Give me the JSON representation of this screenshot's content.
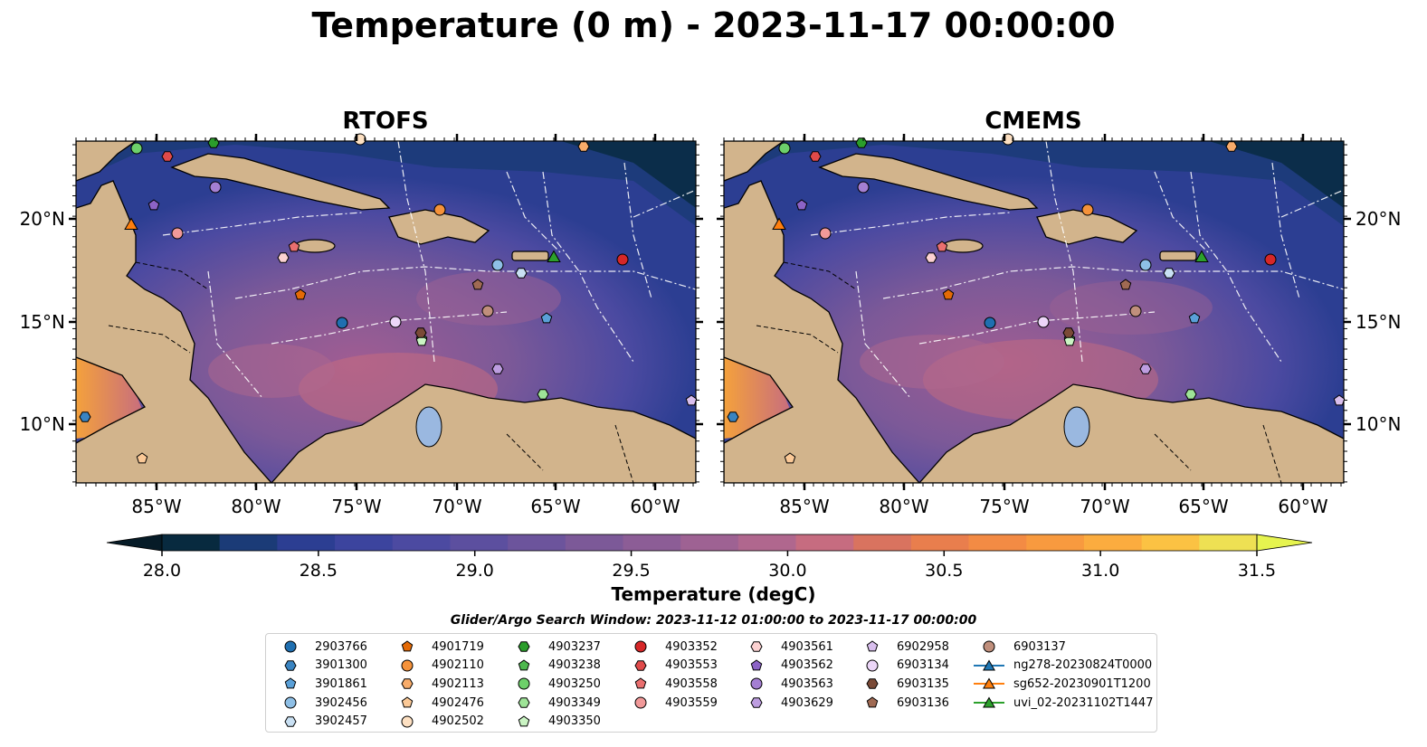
{
  "title": "Temperature (0 m) - 2023-11-17 00:00:00",
  "maps": [
    {
      "title": "RTOFS"
    },
    {
      "title": "CMEMS"
    }
  ],
  "lat_labels": [
    "20°N",
    "15°N",
    "10°N"
  ],
  "lon_labels": [
    "85°W",
    "80°W",
    "75°W",
    "70°W",
    "65°W",
    "60°W"
  ],
  "colorbar": {
    "label": "Temperature (degC)",
    "ticks": [
      "28.0",
      "28.5",
      "29.0",
      "29.5",
      "30.0",
      "30.5",
      "31.0",
      "31.5"
    ],
    "min": 28.0,
    "max": 31.5,
    "colors": [
      "#082a3f",
      "#1b3b77",
      "#2c3e92",
      "#3c449e",
      "#4c4aa1",
      "#5c4f9f",
      "#6c549c",
      "#7c5998",
      "#8c5d96",
      "#9e6293",
      "#b0678e",
      "#c66c80",
      "#d9735f",
      "#e97e4d",
      "#f38b44",
      "#f89a3f",
      "#fbac3f",
      "#fbc243",
      "#eee053"
    ],
    "extend_low_color": "#061b27",
    "extend_high_color": "#e6f44f"
  },
  "search_window": "Glider/Argo Search Window: 2023-11-12 01:00:00 to 2023-11-17 00:00:00",
  "legend": {
    "columns": [
      [
        {
          "label": "2903766",
          "marker": "circle",
          "color": "#1f6fb0"
        },
        {
          "label": "3901300",
          "marker": "hexagon",
          "color": "#3a84c1"
        },
        {
          "label": "3901861",
          "marker": "pentagon",
          "color": "#5aa0d8"
        },
        {
          "label": "3902456",
          "marker": "circle",
          "color": "#8ebfe6"
        },
        {
          "label": "3902457",
          "marker": "hexagon",
          "color": "#c9e0f3"
        }
      ],
      [
        {
          "label": "4901719",
          "marker": "pentagon",
          "color": "#e46a06"
        },
        {
          "label": "4902110",
          "marker": "circle",
          "color": "#f5923a"
        },
        {
          "label": "4902113",
          "marker": "hexagon",
          "color": "#f8ac6a"
        },
        {
          "label": "4902476",
          "marker": "pentagon",
          "color": "#fbc997"
        },
        {
          "label": "4902502",
          "marker": "circle",
          "color": "#fde0c2"
        }
      ],
      [
        {
          "label": "4903237",
          "marker": "hexagon",
          "color": "#2b9d2b"
        },
        {
          "label": "4903238",
          "marker": "pentagon",
          "color": "#4eb84e"
        },
        {
          "label": "4903250",
          "marker": "circle",
          "color": "#6dd06a"
        },
        {
          "label": "4903349",
          "marker": "hexagon",
          "color": "#9ee497"
        },
        {
          "label": "4903350",
          "marker": "pentagon",
          "color": "#caf4c3"
        }
      ],
      [
        {
          "label": "4903352",
          "marker": "circle",
          "color": "#d62728"
        },
        {
          "label": "4903553",
          "marker": "hexagon",
          "color": "#e04a4a"
        },
        {
          "label": "4903558",
          "marker": "pentagon",
          "color": "#ea6f6f"
        },
        {
          "label": "4903559",
          "marker": "circle",
          "color": "#f19999"
        }
      ],
      [
        {
          "label": "4903561",
          "marker": "hexagon",
          "color": "#fcd2d2"
        },
        {
          "label": "4903562",
          "marker": "pentagon",
          "color": "#8c63c6"
        },
        {
          "label": "4903563",
          "marker": "circle",
          "color": "#a47fd2"
        },
        {
          "label": "4903629",
          "marker": "hexagon",
          "color": "#bd9de0"
        }
      ],
      [
        {
          "label": "6902958",
          "marker": "pentagon",
          "color": "#d9bfee"
        },
        {
          "label": "6903134",
          "marker": "circle",
          "color": "#ecd6f8"
        },
        {
          "label": "6903135",
          "marker": "hexagon",
          "color": "#7a4a37"
        },
        {
          "label": "6903136",
          "marker": "pentagon",
          "color": "#a06a53"
        }
      ],
      [
        {
          "label": "6903137",
          "marker": "circle",
          "color": "#c08f7c"
        },
        {
          "label": "ng278-20230824T0000",
          "marker": "triangle-line",
          "color": "#1f77b4"
        },
        {
          "label": "sg652-20230901T1200",
          "marker": "triangle-line",
          "color": "#ff7f0e"
        },
        {
          "label": "uvi_02-20231102T1447",
          "marker": "triangle-line",
          "color": "#2ca02c"
        }
      ]
    ]
  }
}
